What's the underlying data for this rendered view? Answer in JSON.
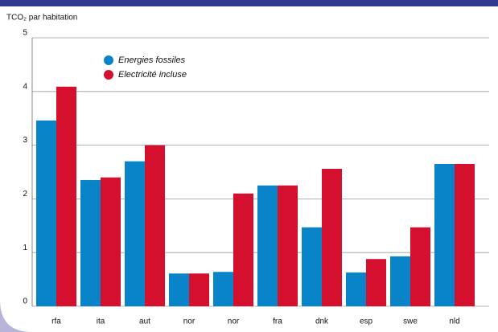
{
  "chart_data": {
    "type": "bar",
    "y_label": "TCO₂ par habitation",
    "categories": [
      "rfa",
      "ita",
      "aut",
      "nor",
      "nor",
      "fra",
      "dnk",
      "esp",
      "swe",
      "nld"
    ],
    "series": [
      {
        "name": "Energies fossiles",
        "color": "#0a84c8",
        "values": [
          3.46,
          2.35,
          2.7,
          0.61,
          0.64,
          2.25,
          1.47,
          0.63,
          0.93,
          2.65
        ]
      },
      {
        "name": "Electricité incluse",
        "color": "#d4102e",
        "values": [
          4.09,
          2.4,
          3.0,
          0.61,
          2.1,
          2.25,
          2.56,
          0.88,
          1.47,
          2.65
        ]
      }
    ],
    "ylim": [
      0,
      5
    ],
    "yticks": [
      0,
      1,
      2,
      3,
      4,
      5
    ],
    "grid": true
  }
}
